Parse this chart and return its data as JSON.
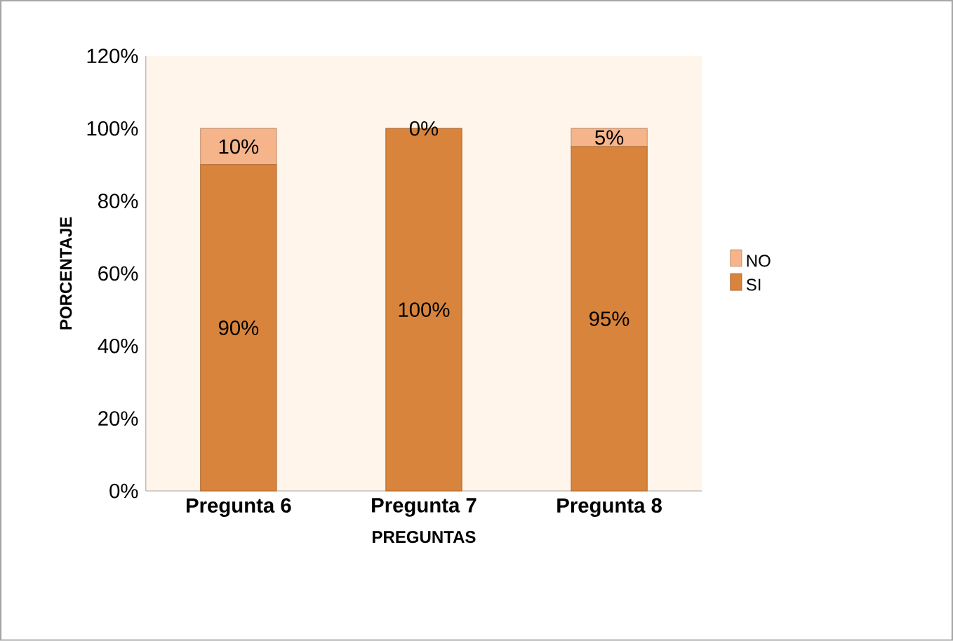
{
  "chart_data": {
    "type": "bar",
    "stacked": true,
    "xlabel": "PREGUNTAS",
    "ylabel": "PORCENTAJE",
    "categories": [
      "Pregunta 6",
      "Pregunta 7",
      "Pregunta 8"
    ],
    "series": [
      {
        "name": "SI",
        "color": "#d9843c",
        "values": [
          90,
          100,
          95
        ],
        "value_labels": [
          "90%",
          "100%",
          "95%"
        ]
      },
      {
        "name": "NO",
        "color": "#f6b48a",
        "values": [
          10,
          0,
          5
        ],
        "value_labels": [
          "10%",
          "0%",
          "5%"
        ]
      }
    ],
    "ylim": [
      0,
      120
    ],
    "yticks": [
      {
        "value": 0,
        "label": "0%"
      },
      {
        "value": 20,
        "label": "20%"
      },
      {
        "value": 40,
        "label": "40%"
      },
      {
        "value": 60,
        "label": "60%"
      },
      {
        "value": 80,
        "label": "80%"
      },
      {
        "value": 100,
        "label": "100%"
      },
      {
        "value": 120,
        "label": "120%"
      }
    ],
    "legend": "right",
    "grid": false
  }
}
